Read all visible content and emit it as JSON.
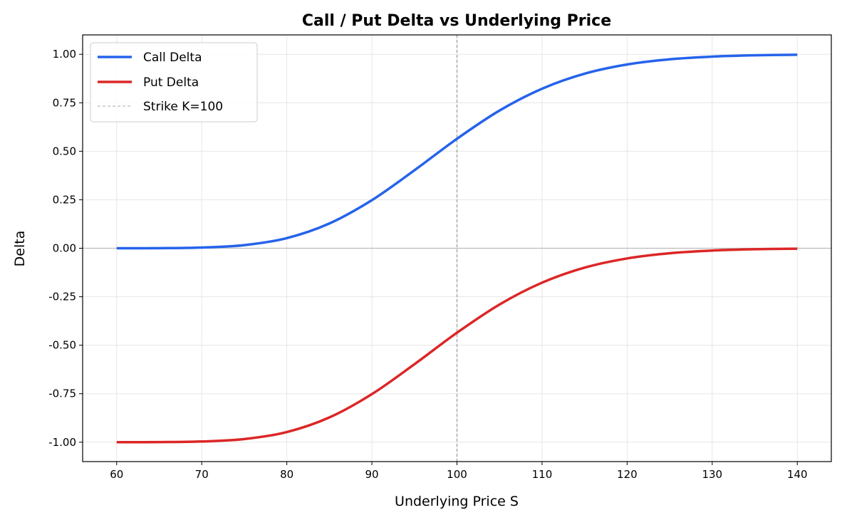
{
  "chart_data": {
    "type": "line",
    "title": "Call / Put Delta vs Underlying Price",
    "xlabel": "Underlying Price S",
    "ylabel": "Delta",
    "xlim": [
      56,
      144
    ],
    "ylim": [
      -1.1,
      1.1
    ],
    "grid": true,
    "legend_position": "top-left",
    "x_ticks": [
      60,
      70,
      80,
      90,
      100,
      110,
      120,
      130,
      140
    ],
    "x_tick_labels": [
      "60",
      "70",
      "80",
      "90",
      "100",
      "110",
      "120",
      "130",
      "140"
    ],
    "y_ticks": [
      1.0,
      0.75,
      0.5,
      0.25,
      0.0,
      -0.25,
      -0.5,
      -0.75,
      -1.0
    ],
    "y_tick_labels": [
      "1.00",
      "0.75",
      "0.50",
      "0.25",
      "0.00",
      "-0.25",
      "-0.50",
      "-0.75",
      "-1.00"
    ],
    "x": [
      60,
      65,
      70,
      75,
      80,
      85,
      90,
      95,
      100,
      105,
      110,
      115,
      120,
      125,
      130,
      135,
      140
    ],
    "series": [
      {
        "name": "Call Delta",
        "color": "#2563eb",
        "values": [
          0.0,
          0.0005,
          0.0036,
          0.0162,
          0.0523,
          0.1276,
          0.248,
          0.402,
          0.5645,
          0.71,
          0.8225,
          0.9,
          0.9475,
          0.9743,
          0.9882,
          0.9948,
          0.9978
        ]
      },
      {
        "name": "Put Delta",
        "color": "#dc2626",
        "values": [
          -1.0,
          -0.9995,
          -0.9964,
          -0.9838,
          -0.9477,
          -0.8724,
          -0.752,
          -0.598,
          -0.4355,
          -0.29,
          -0.1775,
          -0.1,
          -0.0525,
          -0.0257,
          -0.0118,
          -0.0052,
          -0.0022
        ]
      }
    ],
    "reference_lines": [
      {
        "name": "Strike K=100",
        "orientation": "vertical",
        "x": 100,
        "style": "dashed",
        "color": "#999999"
      },
      {
        "orientation": "horizontal",
        "y": 0,
        "color": "#bbbbbb"
      }
    ]
  }
}
